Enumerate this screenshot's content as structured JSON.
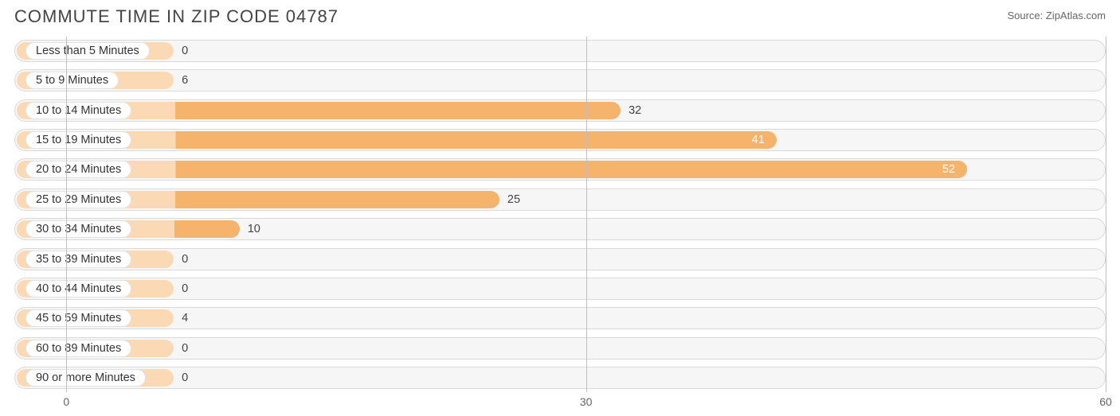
{
  "header": {
    "title": "COMMUTE TIME IN ZIP CODE 04787",
    "source": "Source: ZipAtlas.com"
  },
  "chart": {
    "type": "bar",
    "orientation": "horizontal",
    "background_color": "#ffffff",
    "track_fill": "#f6f6f6",
    "track_border": "#d9d9d9",
    "grid_color": "#bfbfbf",
    "tick_color": "#666666",
    "label_color": "#333333",
    "value_color": "#444444",
    "bar_color": "#f5b36c",
    "bar_color_light": "#fbd9b4",
    "pill_bg": "#ffffff",
    "pill_border": "#e2e2e2",
    "xlim": [
      -3,
      60
    ],
    "xticks": [
      0,
      30,
      60
    ],
    "min_bar_value_equivalent": 6.2,
    "label_fontsize": 14.5,
    "tick_fontsize": 14,
    "title_fontsize": 22,
    "categories": [
      "Less than 5 Minutes",
      "5 to 9 Minutes",
      "10 to 14 Minutes",
      "15 to 19 Minutes",
      "20 to 24 Minutes",
      "25 to 29 Minutes",
      "30 to 34 Minutes",
      "35 to 39 Minutes",
      "40 to 44 Minutes",
      "45 to 59 Minutes",
      "60 to 89 Minutes",
      "90 or more Minutes"
    ],
    "values": [
      0,
      6,
      32,
      41,
      52,
      25,
      10,
      0,
      0,
      4,
      0,
      0
    ],
    "value_label_inside": [
      false,
      false,
      false,
      true,
      true,
      false,
      false,
      false,
      false,
      false,
      false,
      false
    ]
  }
}
